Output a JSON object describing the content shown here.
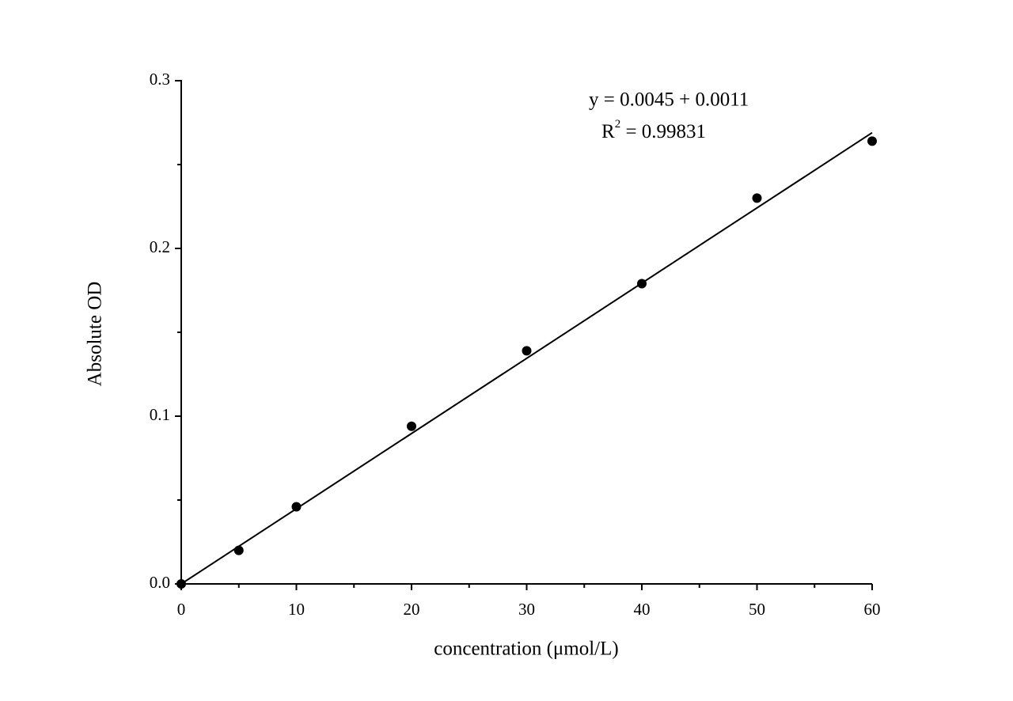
{
  "chart_data": {
    "type": "scatter",
    "x_label": "concentration (μmol/L)",
    "y_label": "Absolute OD",
    "annotations": [
      "y = 0.0045 + 0.0011",
      {
        "base": "R",
        "sup": "2",
        "text": " = 0.99831"
      }
    ],
    "series": [
      {
        "color": "#000000",
        "x": [
          0,
          5,
          10,
          20,
          30,
          40,
          50,
          60
        ],
        "values": [
          0,
          0.02,
          0.046,
          0.094,
          0.139,
          0.179,
          0.23,
          0.264
        ]
      }
    ],
    "fit": {
      "color": "#000000",
      "x": [
        0,
        60
      ],
      "values": [
        0,
        0.269
      ]
    },
    "xlim": [
      0,
      60
    ],
    "xticks": [
      0,
      10,
      20,
      30,
      40,
      50,
      60
    ],
    "xminor": [
      5,
      15,
      25,
      35,
      45,
      55
    ],
    "ylim": [
      0,
      0.3
    ],
    "yticks": [
      {
        "value": 0,
        "label": "0.0"
      },
      0.1,
      0.2,
      0.3
    ],
    "yminor": [
      0.05,
      0.15,
      0.25
    ],
    "grid": false
  }
}
